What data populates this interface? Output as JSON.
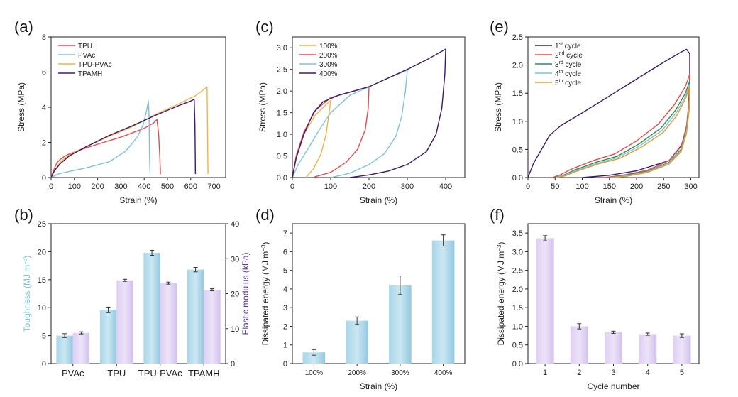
{
  "chart_data": [
    {
      "panel_label": "(a)",
      "type": "line",
      "xlabel": "Strain (%)",
      "ylabel": "Stress (MPa)",
      "xlim": [
        0,
        750
      ],
      "ylim": [
        0,
        8
      ],
      "xticks": [
        0,
        100,
        200,
        300,
        400,
        500,
        600,
        700
      ],
      "yticks": [
        0,
        2,
        4,
        6,
        8
      ],
      "legend_position": "top-left",
      "series": [
        {
          "name": "TPU",
          "color": "#e64b4b",
          "points": [
            [
              0,
              0
            ],
            [
              10,
              0.4
            ],
            [
              25,
              0.85
            ],
            [
              45,
              1.1
            ],
            [
              70,
              1.3
            ],
            [
              120,
              1.55
            ],
            [
              200,
              1.9
            ],
            [
              300,
              2.3
            ],
            [
              400,
              2.8
            ],
            [
              440,
              3.1
            ],
            [
              455,
              3.3
            ],
            [
              462,
              2.5
            ],
            [
              467,
              1.2
            ],
            [
              470,
              0.2
            ]
          ]
        },
        {
          "name": "PVAc",
          "color": "#7cc3dc",
          "points": [
            [
              0,
              0
            ],
            [
              30,
              0.2
            ],
            [
              80,
              0.35
            ],
            [
              150,
              0.55
            ],
            [
              250,
              0.9
            ],
            [
              320,
              1.5
            ],
            [
              370,
              2.3
            ],
            [
              395,
              3.0
            ],
            [
              410,
              3.8
            ],
            [
              418,
              4.35
            ],
            [
              421,
              3.5
            ],
            [
              423,
              1.2
            ],
            [
              425,
              0.3
            ]
          ]
        },
        {
          "name": "TPU-PVAc",
          "color": "#f1b24a",
          "points": [
            [
              0,
              0
            ],
            [
              15,
              0.4
            ],
            [
              40,
              0.9
            ],
            [
              80,
              1.3
            ],
            [
              150,
              1.75
            ],
            [
              250,
              2.35
            ],
            [
              350,
              2.9
            ],
            [
              450,
              3.6
            ],
            [
              550,
              4.2
            ],
            [
              620,
              4.65
            ],
            [
              665,
              5.1
            ],
            [
              670,
              5.15
            ],
            [
              672,
              3.0
            ],
            [
              674,
              0.2
            ]
          ]
        },
        {
          "name": "TPAMH",
          "color": "#3b1a6e",
          "points": [
            [
              0,
              0
            ],
            [
              15,
              0.4
            ],
            [
              40,
              0.8
            ],
            [
              80,
              1.25
            ],
            [
              150,
              1.75
            ],
            [
              250,
              2.4
            ],
            [
              350,
              2.95
            ],
            [
              450,
              3.55
            ],
            [
              550,
              4.1
            ],
            [
              600,
              4.35
            ],
            [
              615,
              4.45
            ],
            [
              618,
              3.0
            ],
            [
              620,
              0.2
            ]
          ]
        }
      ]
    },
    {
      "panel_label": "(b)",
      "type": "bar",
      "categories": [
        "PVAc",
        "TPU",
        "TPU-PVAc",
        "TPAMH"
      ],
      "ylabel": "Toughness (MJ m⁻³)",
      "ylim": [
        0,
        25
      ],
      "yticks": [
        0,
        5,
        10,
        15,
        20,
        25
      ],
      "y2label": "Elastic modulus (kPa)",
      "y2lim": [
        0,
        40
      ],
      "y2ticks": [
        0,
        10,
        20,
        30,
        40
      ],
      "series": [
        {
          "name": "Toughness",
          "axis": "left",
          "color": "#8ec9e0",
          "values": [
            5.0,
            9.6,
            19.8,
            16.8
          ],
          "errors": [
            0.35,
            0.5,
            0.45,
            0.4
          ]
        },
        {
          "name": "Elastic modulus",
          "axis": "right",
          "color": "#d5c3ee",
          "values": [
            8.8,
            23.8,
            23.0,
            21.1
          ],
          "errors": [
            0.3,
            0.3,
            0.3,
            0.3
          ]
        }
      ]
    },
    {
      "panel_label": "(c)",
      "type": "line",
      "xlabel": "Strain (%)",
      "ylabel": "Stress (MPa)",
      "xlim": [
        0,
        450
      ],
      "ylim": [
        0,
        3.25
      ],
      "xticks": [
        0,
        100,
        200,
        300,
        400
      ],
      "yticks": [
        0.0,
        0.5,
        1.0,
        1.5,
        2.0,
        2.5,
        3.0
      ],
      "legend_position": "top-left",
      "series": [
        {
          "name": "100%",
          "color": "#f1b24a",
          "points": [
            [
              0,
              0
            ],
            [
              10,
              0.5
            ],
            [
              30,
              1.0
            ],
            [
              60,
              1.45
            ],
            [
              90,
              1.7
            ],
            [
              100,
              1.78
            ],
            [
              96,
              1.5
            ],
            [
              88,
              1.0
            ],
            [
              75,
              0.55
            ],
            [
              55,
              0.2
            ],
            [
              40,
              0.05
            ],
            [
              35,
              0
            ]
          ]
        },
        {
          "name": "200%",
          "color": "#e64b4b",
          "points": [
            [
              0,
              0
            ],
            [
              10,
              0.5
            ],
            [
              30,
              1.05
            ],
            [
              60,
              1.55
            ],
            [
              100,
              1.85
            ],
            [
              150,
              1.97
            ],
            [
              200,
              2.1
            ],
            [
              198,
              1.6
            ],
            [
              190,
              1.1
            ],
            [
              170,
              0.65
            ],
            [
              140,
              0.35
            ],
            [
              100,
              0.12
            ],
            [
              60,
              0.02
            ],
            [
              55,
              0
            ]
          ]
        },
        {
          "name": "300%",
          "color": "#7cc3dc",
          "points": [
            [
              0,
              0
            ],
            [
              15,
              0.3
            ],
            [
              40,
              0.65
            ],
            [
              70,
              1.1
            ],
            [
              100,
              1.5
            ],
            [
              150,
              1.9
            ],
            [
              200,
              2.1
            ],
            [
              250,
              2.3
            ],
            [
              300,
              2.48
            ],
            [
              295,
              2.0
            ],
            [
              285,
              1.4
            ],
            [
              270,
              0.95
            ],
            [
              240,
              0.55
            ],
            [
              200,
              0.3
            ],
            [
              150,
              0.1
            ],
            [
              110,
              0.02
            ],
            [
              100,
              0
            ]
          ]
        },
        {
          "name": "400%",
          "color": "#3b1a6e",
          "points": [
            [
              0,
              0
            ],
            [
              10,
              0.45
            ],
            [
              30,
              1.0
            ],
            [
              55,
              1.5
            ],
            [
              80,
              1.75
            ],
            [
              120,
              1.9
            ],
            [
              200,
              2.1
            ],
            [
              250,
              2.3
            ],
            [
              300,
              2.5
            ],
            [
              350,
              2.72
            ],
            [
              400,
              2.97
            ],
            [
              398,
              2.4
            ],
            [
              390,
              1.6
            ],
            [
              375,
              1.0
            ],
            [
              350,
              0.6
            ],
            [
              300,
              0.3
            ],
            [
              250,
              0.15
            ],
            [
              200,
              0.06
            ],
            [
              150,
              0
            ]
          ]
        }
      ]
    },
    {
      "panel_label": "(d)",
      "type": "bar",
      "categories": [
        "100%",
        "200%",
        "300%",
        "400%"
      ],
      "xlabel": "Strain (%)",
      "ylabel": "Dissipated energy (MJ m⁻³)",
      "ylim": [
        0,
        7.5
      ],
      "yticks": [
        0,
        1,
        2,
        3,
        4,
        5,
        6,
        7
      ],
      "color": "#8ec9e0",
      "values": [
        0.6,
        2.3,
        4.2,
        6.6
      ],
      "errors": [
        0.15,
        0.2,
        0.5,
        0.3
      ]
    },
    {
      "panel_label": "(e)",
      "type": "line",
      "xlabel": "Strain (%)",
      "ylabel": "Stress (MPa)",
      "xlim": [
        0,
        315
      ],
      "ylim": [
        0,
        2.5
      ],
      "xticks": [
        0,
        50,
        100,
        150,
        200,
        250,
        300
      ],
      "yticks": [
        0.0,
        0.5,
        1.0,
        1.5,
        2.0,
        2.5
      ],
      "legend_position": "top-left",
      "series": [
        {
          "name": "1st cycle",
          "label_base": "1",
          "label_sup": "st",
          "label_rest": " cycle",
          "color": "#3b1a6e",
          "points": [
            [
              0,
              0
            ],
            [
              10,
              0.25
            ],
            [
              25,
              0.5
            ],
            [
              40,
              0.75
            ],
            [
              60,
              0.92
            ],
            [
              100,
              1.15
            ],
            [
              150,
              1.45
            ],
            [
              200,
              1.75
            ],
            [
              250,
              2.05
            ],
            [
              280,
              2.22
            ],
            [
              292,
              2.28
            ],
            [
              298,
              2.2
            ],
            [
              298,
              1.7
            ],
            [
              294,
              1.0
            ],
            [
              285,
              0.6
            ],
            [
              260,
              0.3
            ],
            [
              200,
              0.12
            ],
            [
              150,
              0.04
            ],
            [
              100,
              0
            ]
          ]
        },
        {
          "name": "2nd cycle",
          "label_base": "2",
          "label_sup": "nd",
          "label_rest": " cycle",
          "color": "#e64b4b",
          "points": [
            [
              45,
              0
            ],
            [
              60,
              0.05
            ],
            [
              80,
              0.15
            ],
            [
              120,
              0.3
            ],
            [
              160,
              0.42
            ],
            [
              200,
              0.65
            ],
            [
              240,
              0.95
            ],
            [
              270,
              1.3
            ],
            [
              290,
              1.62
            ],
            [
              298,
              1.84
            ],
            [
              297,
              1.4
            ],
            [
              292,
              0.9
            ],
            [
              282,
              0.55
            ],
            [
              260,
              0.3
            ],
            [
              220,
              0.13
            ],
            [
              180,
              0.05
            ],
            [
              150,
              0.01
            ],
            [
              140,
              0
            ]
          ]
        },
        {
          "name": "3rd cycle",
          "label_base": "3",
          "label_sup": "rd",
          "label_rest": " cycle",
          "color": "#2e8b57",
          "points": [
            [
              50,
              0
            ],
            [
              65,
              0.04
            ],
            [
              85,
              0.13
            ],
            [
              125,
              0.27
            ],
            [
              165,
              0.38
            ],
            [
              205,
              0.6
            ],
            [
              245,
              0.88
            ],
            [
              272,
              1.2
            ],
            [
              290,
              1.5
            ],
            [
              298,
              1.72
            ],
            [
              297,
              1.3
            ],
            [
              292,
              0.85
            ],
            [
              282,
              0.5
            ],
            [
              260,
              0.27
            ],
            [
              220,
              0.11
            ],
            [
              180,
              0.04
            ],
            [
              150,
              0
            ]
          ]
        },
        {
          "name": "4th cycle",
          "label_base": "4",
          "label_sup": "th",
          "label_rest": " cycle",
          "color": "#7cc3dc",
          "points": [
            [
              52,
              0
            ],
            [
              67,
              0.04
            ],
            [
              87,
              0.12
            ],
            [
              127,
              0.25
            ],
            [
              167,
              0.36
            ],
            [
              207,
              0.57
            ],
            [
              247,
              0.84
            ],
            [
              273,
              1.15
            ],
            [
              290,
              1.44
            ],
            [
              298,
              1.66
            ],
            [
              297,
              1.25
            ],
            [
              292,
              0.82
            ],
            [
              282,
              0.48
            ],
            [
              260,
              0.26
            ],
            [
              220,
              0.1
            ],
            [
              180,
              0.03
            ],
            [
              152,
              0
            ]
          ]
        },
        {
          "name": "5th cycle",
          "label_base": "5",
          "label_sup": "th",
          "label_rest": " cycle",
          "color": "#e69a2e",
          "points": [
            [
              54,
              0
            ],
            [
              69,
              0.03
            ],
            [
              89,
              0.11
            ],
            [
              129,
              0.24
            ],
            [
              169,
              0.34
            ],
            [
              209,
              0.54
            ],
            [
              249,
              0.8
            ],
            [
              274,
              1.1
            ],
            [
              290,
              1.4
            ],
            [
              298,
              1.62
            ],
            [
              297,
              1.2
            ],
            [
              292,
              0.78
            ],
            [
              282,
              0.46
            ],
            [
              260,
              0.24
            ],
            [
              220,
              0.09
            ],
            [
              180,
              0.02
            ],
            [
              155,
              0
            ]
          ]
        }
      ]
    },
    {
      "panel_label": "(f)",
      "type": "bar",
      "categories": [
        "1",
        "2",
        "3",
        "4",
        "5"
      ],
      "xlabel": "Cycle number",
      "ylabel": "Dissipated energy (MJ m⁻³)",
      "ylim": [
        0,
        3.75
      ],
      "yticks": [
        0.0,
        0.5,
        1.0,
        1.5,
        2.0,
        2.5,
        3.0,
        3.5
      ],
      "color": "#d5c3ee",
      "values": [
        3.36,
        1.0,
        0.84,
        0.79,
        0.75
      ],
      "errors": [
        0.07,
        0.07,
        0.03,
        0.03,
        0.05
      ]
    }
  ]
}
